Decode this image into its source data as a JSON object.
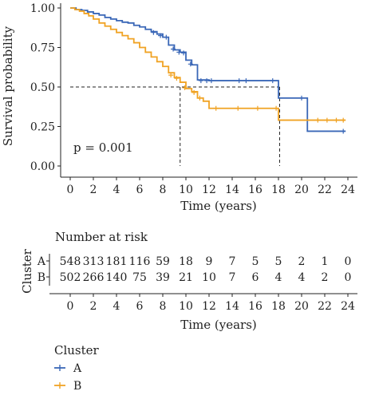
{
  "chart_data": {
    "type": "line",
    "subtype": "kaplan-meier survival curve with number-at-risk table",
    "ylabel": "Survival probability",
    "xlabel": "Time (years)",
    "xlim": [
      0,
      24
    ],
    "ylim": [
      0,
      1
    ],
    "x_ticks": [
      0,
      2,
      4,
      6,
      8,
      10,
      12,
      14,
      16,
      18,
      20,
      22,
      24
    ],
    "x_tick_labels": [
      "0",
      "2",
      "4",
      "6",
      "8",
      "10",
      "12",
      "14",
      "16",
      "18",
      "20",
      "22",
      "24"
    ],
    "y_ticks": [
      0,
      0.25,
      0.5,
      0.75,
      1.0
    ],
    "y_tick_labels": [
      "0.00",
      "0.25",
      "0.50",
      "0.75",
      "1.00"
    ],
    "annotation": "p = 0.001",
    "median_reference": {
      "y": 0.5,
      "x_values": [
        9.5,
        18.1
      ]
    },
    "grid": false,
    "legend": {
      "title": "Cluster",
      "position": "bottom-left",
      "entries": [
        {
          "name": "A",
          "color": "#3a67b7"
        },
        {
          "name": "B",
          "color": "#f0a324"
        }
      ]
    },
    "series": [
      {
        "name": "A",
        "color": "#3a67b7",
        "steps": [
          [
            0,
            1.0
          ],
          [
            0.5,
            0.99
          ],
          [
            1.0,
            0.985
          ],
          [
            1.5,
            0.975
          ],
          [
            2.0,
            0.965
          ],
          [
            2.5,
            0.955
          ],
          [
            3.0,
            0.94
          ],
          [
            3.5,
            0.93
          ],
          [
            4.0,
            0.92
          ],
          [
            4.5,
            0.91
          ],
          [
            5.0,
            0.905
          ],
          [
            5.5,
            0.89
          ],
          [
            6.0,
            0.88
          ],
          [
            6.5,
            0.865
          ],
          [
            7.0,
            0.85
          ],
          [
            7.5,
            0.835
          ],
          [
            8.0,
            0.815
          ],
          [
            8.5,
            0.765
          ],
          [
            9.0,
            0.735
          ],
          [
            9.5,
            0.72
          ],
          [
            10.0,
            0.67
          ],
          [
            10.5,
            0.64
          ],
          [
            11.0,
            0.545
          ],
          [
            12.0,
            0.54
          ],
          [
            18.0,
            0.43
          ],
          [
            20.5,
            0.22
          ],
          [
            23.8,
            0.22
          ]
        ],
        "censor_marks": [
          [
            7.2,
            0.845
          ],
          [
            7.8,
            0.825
          ],
          [
            8.3,
            0.815
          ],
          [
            8.9,
            0.74
          ],
          [
            9.4,
            0.72
          ],
          [
            9.8,
            0.715
          ],
          [
            10.4,
            0.645
          ],
          [
            11.3,
            0.54
          ],
          [
            11.8,
            0.54
          ],
          [
            12.2,
            0.54
          ],
          [
            14.6,
            0.54
          ],
          [
            15.2,
            0.54
          ],
          [
            17.5,
            0.54
          ],
          [
            20.0,
            0.43
          ],
          [
            23.6,
            0.22
          ]
        ]
      },
      {
        "name": "B",
        "color": "#f0a324",
        "steps": [
          [
            0,
            1.0
          ],
          [
            0.4,
            0.99
          ],
          [
            0.8,
            0.98
          ],
          [
            1.2,
            0.965
          ],
          [
            1.6,
            0.95
          ],
          [
            2.0,
            0.93
          ],
          [
            2.5,
            0.905
          ],
          [
            3.0,
            0.885
          ],
          [
            3.5,
            0.865
          ],
          [
            4.0,
            0.845
          ],
          [
            4.5,
            0.825
          ],
          [
            5.0,
            0.805
          ],
          [
            5.5,
            0.78
          ],
          [
            6.0,
            0.75
          ],
          [
            6.5,
            0.72
          ],
          [
            7.0,
            0.69
          ],
          [
            7.5,
            0.66
          ],
          [
            8.0,
            0.63
          ],
          [
            8.5,
            0.59
          ],
          [
            9.0,
            0.56
          ],
          [
            9.5,
            0.53
          ],
          [
            10.0,
            0.49
          ],
          [
            10.5,
            0.47
          ],
          [
            11.0,
            0.43
          ],
          [
            11.5,
            0.41
          ],
          [
            12.0,
            0.365
          ],
          [
            18.0,
            0.29
          ],
          [
            23.8,
            0.29
          ]
        ],
        "censor_marks": [
          [
            8.7,
            0.575
          ],
          [
            9.2,
            0.555
          ],
          [
            9.9,
            0.495
          ],
          [
            10.7,
            0.465
          ],
          [
            11.2,
            0.43
          ],
          [
            12.6,
            0.365
          ],
          [
            14.5,
            0.365
          ],
          [
            16.2,
            0.365
          ],
          [
            17.8,
            0.365
          ],
          [
            21.4,
            0.29
          ],
          [
            22.2,
            0.29
          ],
          [
            23.0,
            0.29
          ],
          [
            23.6,
            0.29
          ]
        ]
      }
    ],
    "risk_table": {
      "title": "Number at risk",
      "ylabel": "Cluster",
      "xlabel": "Time (years)",
      "times": [
        0,
        2,
        4,
        6,
        8,
        10,
        12,
        14,
        16,
        18,
        20,
        22,
        24
      ],
      "rows": [
        {
          "name": "A",
          "color": "#3a67b7",
          "counts": [
            "548",
            "313",
            "181",
            "116",
            "59",
            "18",
            "9",
            "7",
            "5",
            "5",
            "2",
            "1",
            "0"
          ]
        },
        {
          "name": "B",
          "color": "#f0a324",
          "counts": [
            "502",
            "266",
            "140",
            "75",
            "39",
            "21",
            "10",
            "7",
            "6",
            "4",
            "4",
            "2",
            "0"
          ]
        }
      ]
    }
  }
}
